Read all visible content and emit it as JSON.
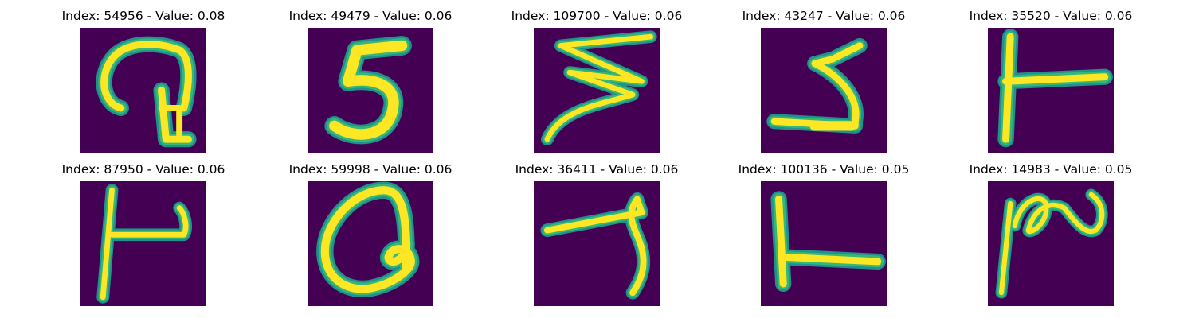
{
  "colors": {
    "background": "#440154",
    "stroke_core": "#fde725",
    "stroke_edge": "#35b779",
    "stroke_halo": "#21918c"
  },
  "samples": [
    {
      "title": "Index: 54956 - Value: 0.08",
      "glyph": "q-like"
    },
    {
      "title": "Index: 49479 - Value: 0.06",
      "glyph": "5-like"
    },
    {
      "title": "Index: 109700 - Value: 0.06",
      "glyph": "z-like"
    },
    {
      "title": "Index: 43247 - Value: 0.06",
      "glyph": "s-like"
    },
    {
      "title": "Index: 35520 - Value: 0.06",
      "glyph": "t-like"
    },
    {
      "title": "Index: 87950 - Value: 0.06",
      "glyph": "hooked-t"
    },
    {
      "title": "Index: 59998 - Value: 0.06",
      "glyph": "a-like"
    },
    {
      "title": "Index: 36411 - Value: 0.06",
      "glyph": "7-like"
    },
    {
      "title": "Index: 100136 - Value: 0.05",
      "glyph": "L-like"
    },
    {
      "title": "Index: 14983 - Value: 0.05",
      "glyph": "n-like"
    }
  ]
}
